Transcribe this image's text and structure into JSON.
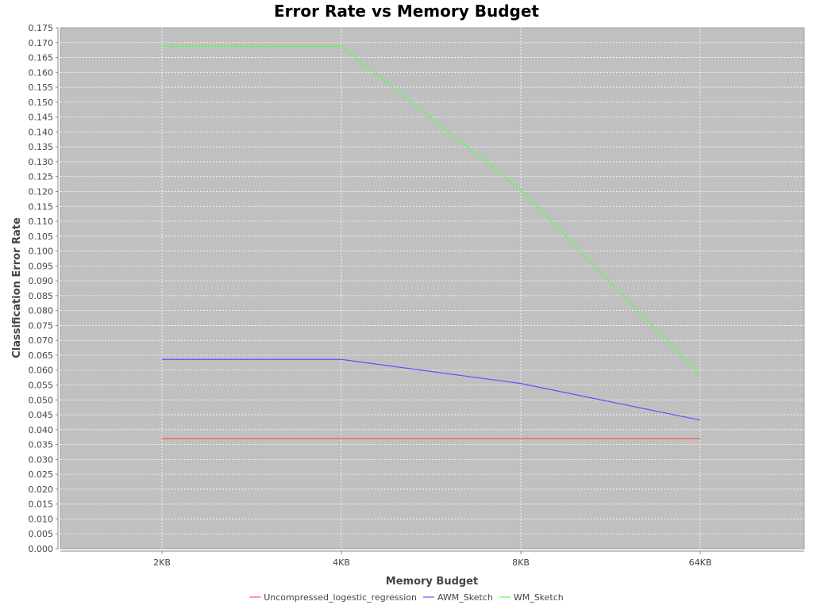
{
  "chart_data": {
    "type": "line",
    "title": "Error Rate vs Memory Budget",
    "xlabel": "Memory Budget",
    "ylabel": "Classification Error Rate",
    "categories": [
      "2KB",
      "4KB",
      "8KB",
      "64KB"
    ],
    "ylim": [
      0.0,
      0.175
    ],
    "ytick_step": 0.005,
    "yticks": [
      "0.000",
      "0.005",
      "0.010",
      "0.015",
      "0.020",
      "0.025",
      "0.030",
      "0.035",
      "0.040",
      "0.045",
      "0.050",
      "0.055",
      "0.060",
      "0.065",
      "0.070",
      "0.075",
      "0.080",
      "0.085",
      "0.090",
      "0.095",
      "0.100",
      "0.105",
      "0.110",
      "0.115",
      "0.120",
      "0.125",
      "0.130",
      "0.135",
      "0.140",
      "0.145",
      "0.150",
      "0.155",
      "0.160",
      "0.165",
      "0.170",
      "0.175"
    ],
    "grid": true,
    "legend_position": "bottom-center",
    "series": [
      {
        "name": "Uncompressed_logestic_regression",
        "color": "#ff5555",
        "values": [
          0.037,
          0.037,
          0.037,
          0.037
        ]
      },
      {
        "name": "AWM_Sketch",
        "color": "#5555ff",
        "values": [
          0.0636,
          0.0636,
          0.0555,
          0.0432
        ]
      },
      {
        "name": "WM_Sketch",
        "color": "#55ff55",
        "values": [
          0.1688,
          0.1688,
          0.1205,
          0.0583
        ]
      }
    ],
    "plot_background": "#c0c0c0",
    "gridline_color": "#ffffff"
  }
}
